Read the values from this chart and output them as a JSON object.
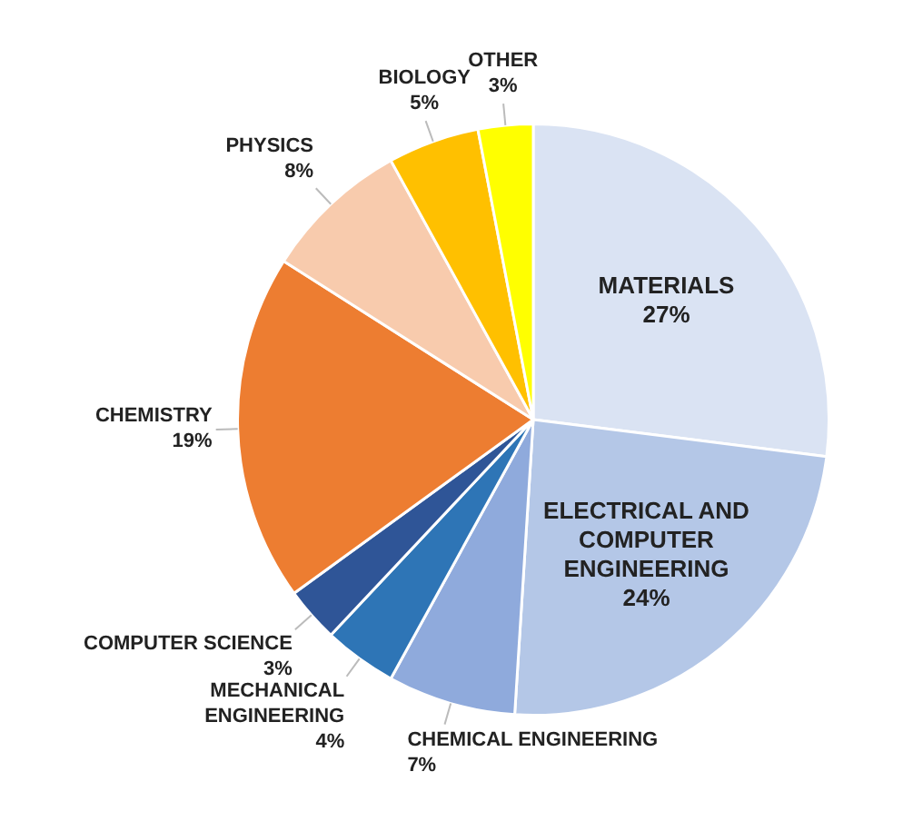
{
  "chart_data": {
    "type": "pie",
    "categories": [
      "MATERIALS",
      "ELECTRICAL AND COMPUTER ENGINEERING",
      "CHEMICAL ENGINEERING",
      "MECHANICAL ENGINEERING",
      "COMPUTER SCIENCE",
      "CHEMISTRY",
      "PHYSICS",
      "BIOLOGY",
      "OTHER"
    ],
    "values": [
      27,
      24,
      7,
      4,
      3,
      19,
      8,
      5,
      3
    ],
    "value_labels": [
      "27%",
      "24%",
      "7%",
      "4%",
      "3%",
      "19%",
      "8%",
      "5%",
      "3%"
    ],
    "colors": [
      "#dae3f3",
      "#b4c7e7",
      "#8faadc",
      "#2e75b6",
      "#2f5597",
      "#ed7d31",
      "#f8cbad",
      "#ffc000",
      "#ffff00"
    ],
    "legend": false
  }
}
